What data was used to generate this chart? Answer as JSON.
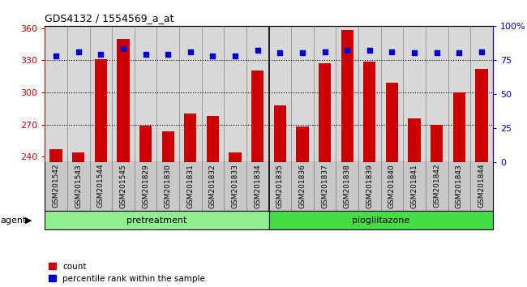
{
  "title": "GDS4132 / 1554569_a_at",
  "samples": [
    "GSM201542",
    "GSM201543",
    "GSM201544",
    "GSM201545",
    "GSM201829",
    "GSM201830",
    "GSM201831",
    "GSM201832",
    "GSM201833",
    "GSM201834",
    "GSM201835",
    "GSM201836",
    "GSM201837",
    "GSM201838",
    "GSM201839",
    "GSM201840",
    "GSM201841",
    "GSM201842",
    "GSM201843",
    "GSM201844"
  ],
  "counts": [
    247,
    244,
    331,
    350,
    269,
    264,
    280,
    278,
    244,
    320,
    288,
    268,
    327,
    358,
    329,
    309,
    276,
    270,
    300,
    322
  ],
  "percentiles": [
    78,
    81,
    79,
    83,
    79,
    79,
    81,
    78,
    78,
    82,
    80,
    80,
    81,
    82,
    82,
    81,
    80,
    80,
    80,
    81
  ],
  "n_pretreatment": 10,
  "n_piogliitazone": 10,
  "group_names": [
    "pretreatment",
    "piogliitazone"
  ],
  "group_colors": [
    "#90EE90",
    "#44DD44"
  ],
  "ylim_left": [
    235,
    362
  ],
  "ylim_right": [
    0,
    100
  ],
  "yticks_left": [
    240,
    270,
    300,
    330,
    360
  ],
  "yticks_right": [
    0,
    25,
    50,
    75,
    100
  ],
  "bar_color": "#CC0000",
  "dot_color": "#0000CC",
  "bar_width": 0.55,
  "plot_bg": "#D8D8D8",
  "tick_bg": "#C8C8C8",
  "gridline_color": "#000000",
  "left_axis_color": "#CC0000",
  "right_axis_color": "#0000CC"
}
